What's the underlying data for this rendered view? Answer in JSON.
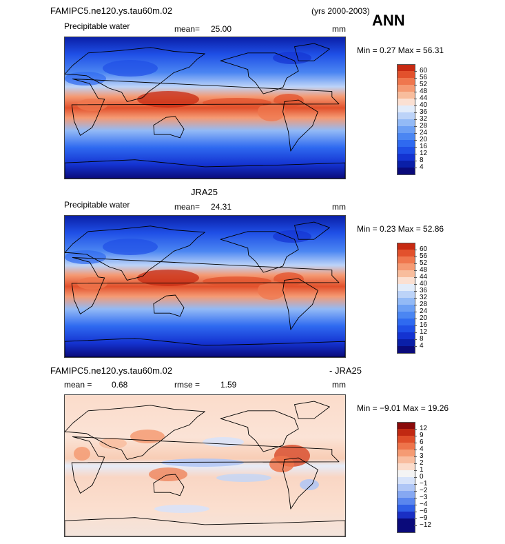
{
  "header": {
    "case_name": "FAMIPC5.ne120.ys.tau60m.02",
    "years": "(yrs 2000-2003)",
    "season": "ANN"
  },
  "panels": [
    {
      "title": "",
      "variable": "Precipitable water",
      "mean_label": "mean=",
      "mean_value": "25.00",
      "units": "mm",
      "min_max": "Min =   0.27 Max =  56.31",
      "colorbar_labels": [
        "60",
        "56",
        "52",
        "48",
        "44",
        "40",
        "36",
        "32",
        "28",
        "24",
        "20",
        "16",
        "12",
        "8",
        "4"
      ]
    },
    {
      "title": "JRA25",
      "variable": "Precipitable water",
      "mean_label": "mean=",
      "mean_value": "24.31",
      "units": "mm",
      "min_max": "Min =   0.23 Max =  52.86",
      "colorbar_labels": [
        "60",
        "56",
        "52",
        "48",
        "44",
        "40",
        "36",
        "32",
        "28",
        "24",
        "20",
        "16",
        "12",
        "8",
        "4"
      ]
    },
    {
      "title_left": "FAMIPC5.ne120.ys.tau60m.02",
      "title_right": "- JRA25",
      "mean_label": "mean =",
      "mean_value": "0.68",
      "rmse_label": "rmse =",
      "rmse_value": "1.59",
      "units": "mm",
      "min_max": "Min =  −9.01 Max =  19.26",
      "colorbar_labels": [
        "12",
        "9",
        "6",
        "4",
        "3",
        "2",
        "1",
        "0",
        "−1",
        "−2",
        "−3",
        "−4",
        "−6",
        "−9",
        "−12"
      ]
    }
  ],
  "colors": {
    "abs_scale": [
      "#0a0a7a",
      "#0a1fa8",
      "#1433d1",
      "#1f4fe6",
      "#2f6af0",
      "#4b86f2",
      "#6c9ff4",
      "#93baf6",
      "#bcd3f8",
      "#e2ecfa",
      "#fbe0d2",
      "#f8bd9d",
      "#f59a73",
      "#ef774e",
      "#e2512c",
      "#c72a12",
      "#8e0a0a"
    ],
    "diff_scale": [
      "#0a0a7a",
      "#1a2fc4",
      "#2f5ee6",
      "#5a86ee",
      "#86a8f2",
      "#afc6f6",
      "#d7e3fa",
      "#f4f4f4",
      "#fbdccb",
      "#f8bd9f",
      "#f59b73",
      "#ee744b",
      "#df4e2a",
      "#c12912",
      "#8a0a0a"
    ]
  },
  "chart_data": [
    {
      "type": "heatmap",
      "title": "",
      "subtitle": "Precipitable water",
      "units": "mm",
      "mean": 25.0,
      "min": 0.27,
      "max": 56.31,
      "levels": [
        4,
        8,
        12,
        16,
        20,
        24,
        28,
        32,
        36,
        40,
        44,
        48,
        52,
        56,
        60
      ]
    },
    {
      "type": "heatmap",
      "title": "JRA25",
      "subtitle": "Precipitable water",
      "units": "mm",
      "mean": 24.31,
      "min": 0.23,
      "max": 52.86,
      "levels": [
        4,
        8,
        12,
        16,
        20,
        24,
        28,
        32,
        36,
        40,
        44,
        48,
        52,
        56,
        60
      ]
    },
    {
      "type": "heatmap",
      "title": "FAMIPC5.ne120.ys.tau60m.02 - JRA25",
      "units": "mm",
      "mean": 0.68,
      "rmse": 1.59,
      "min": -9.01,
      "max": 19.26,
      "levels": [
        -12,
        -9,
        -6,
        -4,
        -3,
        -2,
        -1,
        0,
        1,
        2,
        3,
        4,
        6,
        9,
        12
      ]
    }
  ]
}
